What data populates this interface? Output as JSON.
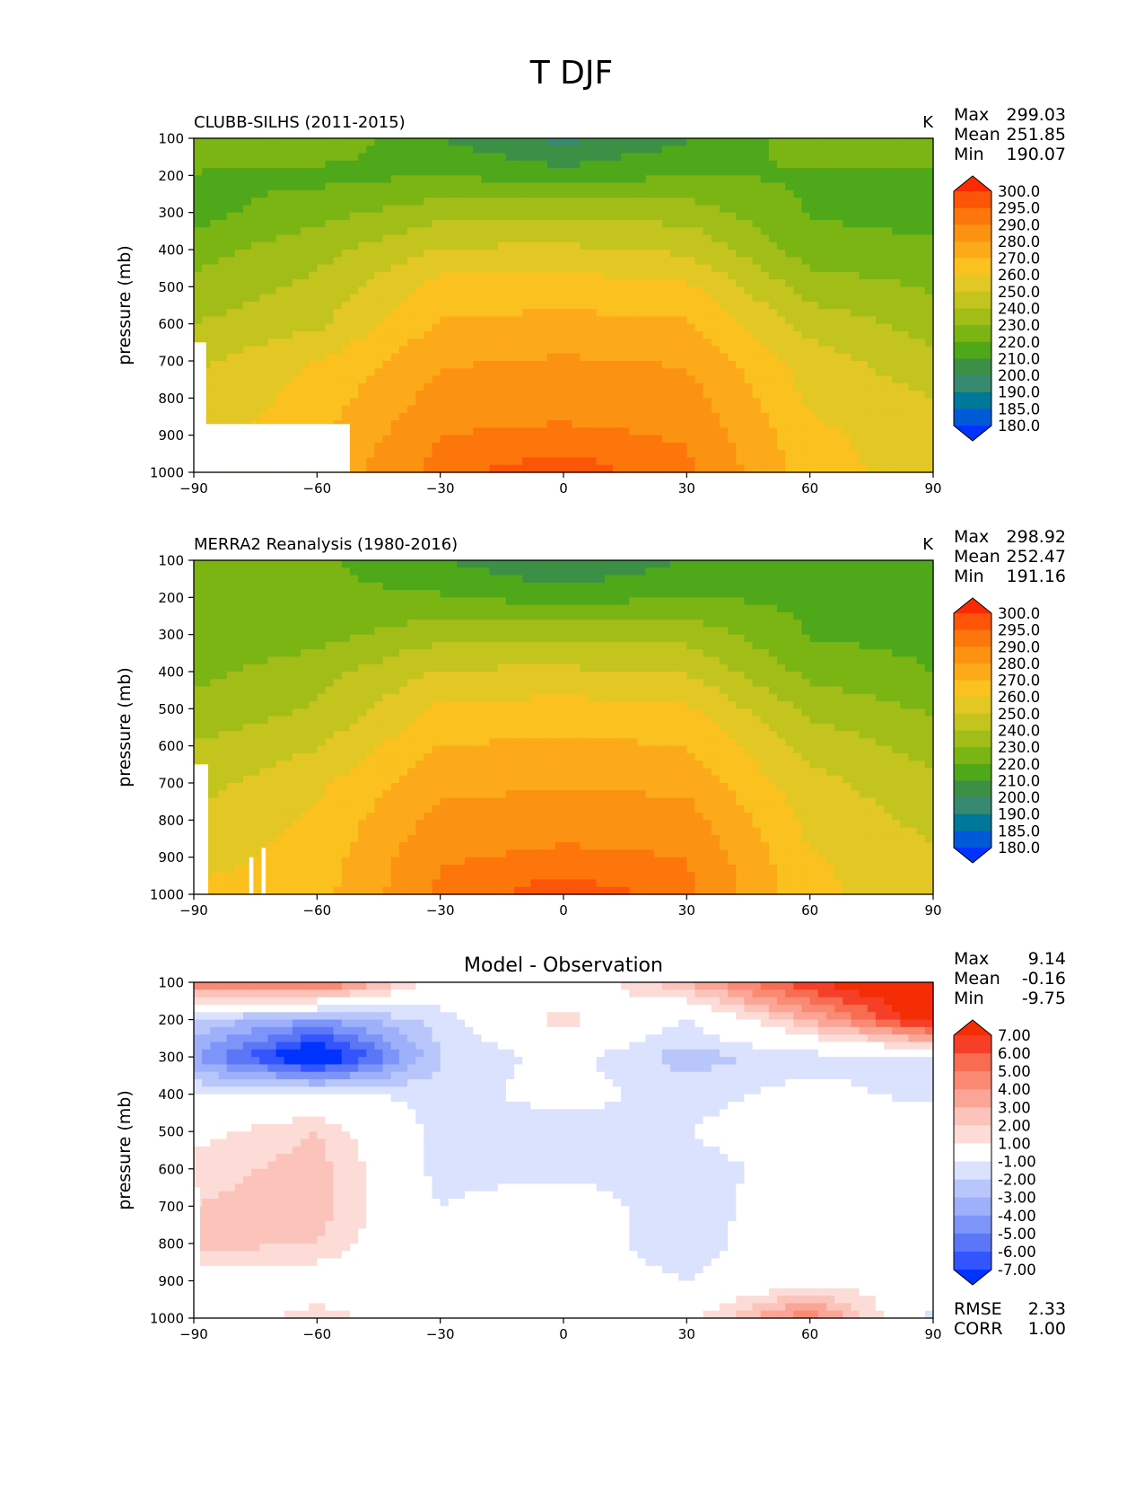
{
  "figure_title": "T DJF",
  "colors": {
    "temperature_scale": [
      "#0033ff",
      "#0059d6",
      "#007899",
      "#378a70",
      "#3b9045",
      "#4ea81a",
      "#7bb514",
      "#a2bd18",
      "#c4c41e",
      "#e3c724",
      "#fbc11f",
      "#fca91a",
      "#fc9212",
      "#fd760b",
      "#fd5508",
      "#fc2a04"
    ],
    "difference_scale": [
      "#0033ff",
      "#3355ff",
      "#5b76f6",
      "#7d95f8",
      "#9fb0fa",
      "#b8c6fb",
      "#dbe2fd",
      "#ffffff",
      "#fddcd8",
      "#fcc3bb",
      "#fba596",
      "#fa8a74",
      "#f86c52",
      "#f63f26",
      "#f42d04"
    ]
  },
  "chart_data": [
    {
      "type": "heatmap",
      "title": "CLUBB-SILHS (2011-2015)",
      "units": "K",
      "xlabel": "",
      "ylabel": "pressure (mb)",
      "xlim": [
        -90,
        90
      ],
      "ylim": [
        1000,
        100
      ],
      "xticks": [
        "−90",
        "−60",
        "−30",
        "0",
        "30",
        "60",
        "90"
      ],
      "yticks": [
        "100",
        "200",
        "300",
        "400",
        "500",
        "600",
        "700",
        "800",
        "900",
        "1000"
      ],
      "stats": [
        {
          "label": "Max",
          "value": "299.03"
        },
        {
          "label": "Mean",
          "value": "251.85"
        },
        {
          "label": "Min",
          "value": "190.07"
        }
      ],
      "colorbar_levels": [
        "300.0",
        "295.0",
        "290.0",
        "280.0",
        "270.0",
        "260.0",
        "250.0",
        "240.0",
        "230.0",
        "220.0",
        "210.0",
        "200.0",
        "190.0",
        "185.0",
        "180.0"
      ],
      "field": {
        "lat": [
          -90,
          -60,
          -30,
          0,
          30,
          60,
          90
        ],
        "pressure": [
          100,
          200,
          300,
          400,
          500,
          600,
          700,
          800,
          900,
          1000
        ],
        "values": [
          [
            231,
            228,
            210,
            197,
            209,
            226,
            226
          ],
          [
            219,
            217,
            220,
            214,
            220,
            219,
            218
          ],
          [
            216,
            226,
            236,
            237,
            236,
            219,
            216
          ],
          [
            226,
            236,
            251,
            252,
            248,
            225,
            222
          ],
          [
            232,
            243,
            264,
            265,
            262,
            235,
            229
          ],
          [
            240,
            248,
            271,
            273,
            271,
            246,
            236
          ],
          [
            248,
            260,
            279,
            281,
            279,
            255,
            243
          ],
          [
            252,
            264,
            284,
            286,
            285,
            258,
            250
          ],
          [
            255,
            268,
            290,
            292,
            289,
            263,
            253
          ],
          [
            258,
            272,
            294,
            298,
            292,
            265,
            254
          ]
        ],
        "missing": "surface region from 90S to about 52S below 870 mb, plus a narrow strip near 90S below 650 mb"
      }
    },
    {
      "type": "heatmap",
      "title": "MERRA2 Reanalysis (1980-2016)",
      "units": "K",
      "xlabel": "",
      "ylabel": "pressure (mb)",
      "xlim": [
        -90,
        90
      ],
      "ylim": [
        1000,
        100
      ],
      "xticks": [
        "−90",
        "−60",
        "−30",
        "0",
        "30",
        "60",
        "90"
      ],
      "yticks": [
        "100",
        "200",
        "300",
        "400",
        "500",
        "600",
        "700",
        "800",
        "900",
        "1000"
      ],
      "stats": [
        {
          "label": "Max",
          "value": "298.92"
        },
        {
          "label": "Mean",
          "value": "252.47"
        },
        {
          "label": "Min",
          "value": "191.16"
        }
      ],
      "colorbar_levels": [
        "300.0",
        "295.0",
        "290.0",
        "280.0",
        "270.0",
        "260.0",
        "250.0",
        "240.0",
        "230.0",
        "220.0",
        "210.0",
        "200.0",
        "190.0",
        "185.0",
        "180.0"
      ],
      "field": {
        "lat": [
          -90,
          -60,
          -30,
          0,
          30,
          60,
          90
        ],
        "pressure": [
          100,
          200,
          300,
          400,
          500,
          600,
          700,
          800,
          900,
          1000
        ],
        "values": [
          [
            222,
            222,
            211,
            198,
            211,
            219,
            216
          ],
          [
            221,
            222,
            221,
            216,
            220,
            218,
            217
          ],
          [
            221,
            226,
            237,
            236,
            237,
            219,
            217
          ],
          [
            227,
            236,
            251,
            252,
            249,
            227,
            220
          ],
          [
            233,
            241,
            262,
            264,
            262,
            237,
            229
          ],
          [
            241,
            249,
            270,
            272,
            270,
            247,
            236
          ],
          [
            246,
            258,
            277,
            279,
            277,
            253,
            243
          ],
          [
            252,
            262,
            283,
            286,
            285,
            257,
            247
          ],
          [
            256,
            264,
            289,
            292,
            290,
            261,
            252
          ],
          [
            262,
            266,
            292,
            298,
            293,
            263,
            253
          ]
        ],
        "missing": "narrow strip near 90S below 650 mb and small gaps near 75S below 870 mb"
      }
    },
    {
      "type": "heatmap",
      "title": "Model - Observation",
      "units": "",
      "xlabel": "",
      "ylabel": "pressure (mb)",
      "xlim": [
        -90,
        90
      ],
      "ylim": [
        1000,
        100
      ],
      "xticks": [
        "−90",
        "−60",
        "−30",
        "0",
        "30",
        "60",
        "90"
      ],
      "yticks": [
        "100",
        "200",
        "300",
        "400",
        "500",
        "600",
        "700",
        "800",
        "900",
        "1000"
      ],
      "stats": [
        {
          "label": "Max",
          "value": "9.14"
        },
        {
          "label": "Mean",
          "value": "-0.16"
        },
        {
          "label": "Min",
          "value": "-9.75"
        }
      ],
      "extra_stats": [
        {
          "label": "RMSE",
          "value": "2.33"
        },
        {
          "label": "CORR",
          "value": "1.00"
        }
      ],
      "colorbar_levels": [
        "7.00",
        "6.00",
        "5.00",
        "4.00",
        "3.00",
        "2.00",
        "1.00",
        "-1.00",
        "-2.00",
        "-3.00",
        "-4.00",
        "-5.00",
        "-6.00",
        "-7.00"
      ],
      "field": {
        "lat": [
          -90,
          -60,
          -30,
          0,
          30,
          60,
          90
        ],
        "pressure": [
          100,
          200,
          300,
          400,
          500,
          600,
          700,
          800,
          900,
          1000
        ],
        "values": [
          [
            5.0,
            6.0,
            0.0,
            -0.5,
            3.0,
            7.0,
            9.0
          ],
          [
            -2.0,
            -4.0,
            -1.5,
            1.5,
            -1.0,
            3.0,
            8.0
          ],
          [
            -4.0,
            -9.0,
            -2.0,
            -0.5,
            -2.5,
            -1.5,
            -1.0
          ],
          [
            -1.0,
            -0.5,
            -1.5,
            -0.5,
            -1.5,
            -0.5,
            -1.5
          ],
          [
            0.5,
            2.0,
            -1.5,
            -1.5,
            -1.0,
            0.0,
            0.5
          ],
          [
            1.5,
            2.5,
            -1.5,
            -1.5,
            -1.5,
            -0.5,
            0.0
          ],
          [
            2.0,
            2.5,
            -1.0,
            0.0,
            -2.0,
            0.5,
            0.5
          ],
          [
            2.5,
            2.0,
            -1.0,
            0.0,
            -2.0,
            1.0,
            1.0
          ],
          [
            0.0,
            0.0,
            0.0,
            0.0,
            -1.0,
            0.5,
            0.0
          ],
          [
            0.0,
            1.5,
            0.0,
            0.0,
            0.5,
            5.0,
            -1.5
          ]
        ]
      }
    }
  ]
}
